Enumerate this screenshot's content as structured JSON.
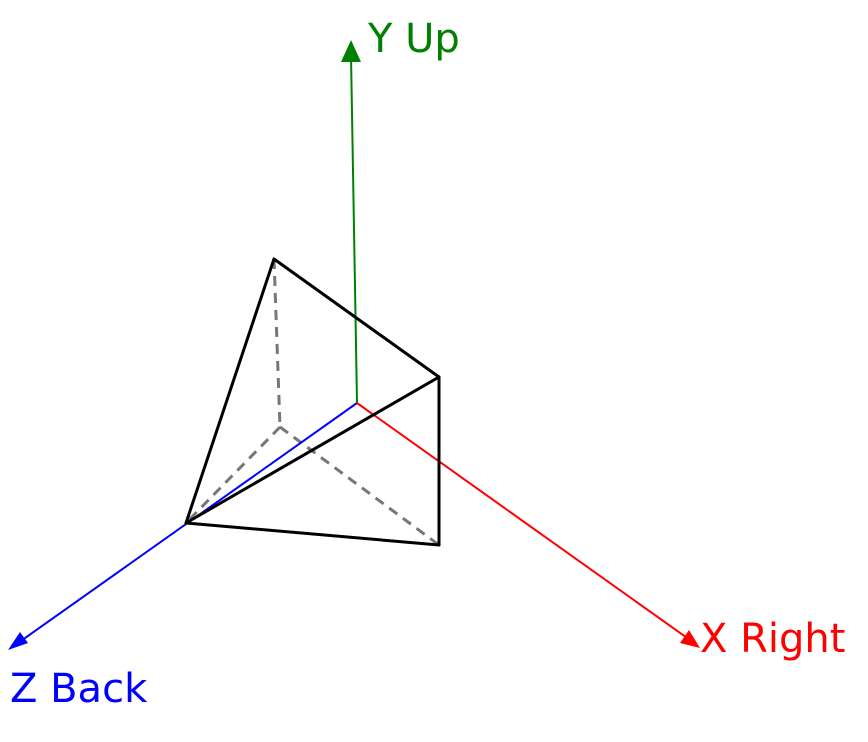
{
  "axes": {
    "x": {
      "label": "X Right",
      "color": "#ff0000"
    },
    "y": {
      "label": "Y Up",
      "color": "#008000"
    },
    "z": {
      "label": "Z Back",
      "color": "#0000ff"
    }
  },
  "shape": {
    "solid_edge_color": "#000000",
    "hidden_edge_color": "#777777"
  }
}
